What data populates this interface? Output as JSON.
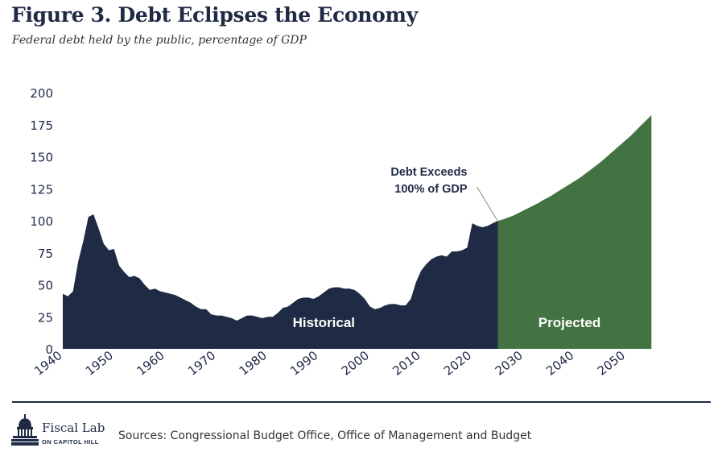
{
  "title": "Figure 3. Debt Eclipses the Economy",
  "subtitle": "Federal debt held by the public, percentage of GDP",
  "colors": {
    "historical": "#1f2a44",
    "projected": "#437342",
    "text": "#1f2a44",
    "annotation_line": "#888888"
  },
  "chart_data": {
    "type": "area",
    "title": "Figure 3. Debt Eclipses the Economy",
    "subtitle": "Federal debt held by the public, percentage of GDP",
    "xlabel": "",
    "ylabel": "",
    "xlim": [
      1940,
      2057
    ],
    "ylim": [
      0,
      200
    ],
    "y_ticks": [
      0,
      25,
      50,
      75,
      100,
      125,
      150,
      175,
      200
    ],
    "x_ticks": [
      1940,
      1950,
      1960,
      1970,
      1980,
      1990,
      2000,
      2010,
      2020,
      2030,
      2040,
      2050
    ],
    "grid": false,
    "legend": "none",
    "series": [
      {
        "name": "Historical",
        "x": [
          1940,
          1941,
          1942,
          1943,
          1944,
          1945,
          1946,
          1947,
          1948,
          1949,
          1950,
          1951,
          1952,
          1953,
          1954,
          1955,
          1956,
          1957,
          1958,
          1959,
          1960,
          1961,
          1962,
          1963,
          1964,
          1965,
          1966,
          1967,
          1968,
          1969,
          1970,
          1971,
          1972,
          1973,
          1974,
          1975,
          1976,
          1977,
          1978,
          1979,
          1980,
          1981,
          1982,
          1983,
          1984,
          1985,
          1986,
          1987,
          1988,
          1989,
          1990,
          1991,
          1992,
          1993,
          1994,
          1995,
          1996,
          1997,
          1998,
          1999,
          2000,
          2001,
          2002,
          2003,
          2004,
          2005,
          2006,
          2007,
          2008,
          2009,
          2010,
          2011,
          2012,
          2013,
          2014,
          2015,
          2016,
          2017,
          2018,
          2019,
          2020,
          2021,
          2022,
          2023,
          2024,
          2025
        ],
        "values": [
          43,
          41,
          45,
          68,
          84,
          103,
          105,
          94,
          82,
          77,
          78,
          65,
          60,
          56,
          57,
          55,
          50,
          46,
          47,
          45,
          44,
          43,
          42,
          40,
          38,
          36,
          33,
          31,
          31,
          27,
          26,
          26,
          25,
          24,
          22,
          24,
          26,
          26,
          25,
          24,
          25,
          25,
          28,
          32,
          33,
          36,
          39,
          40,
          40,
          39,
          41,
          44,
          47,
          48,
          48,
          47,
          47,
          46,
          43,
          39,
          33,
          31,
          32,
          34,
          35,
          35,
          34,
          34,
          39,
          52,
          61,
          66,
          70,
          72,
          73,
          72,
          76,
          76,
          77,
          79,
          98,
          96,
          95,
          96,
          98,
          100
        ]
      },
      {
        "name": "Projected",
        "x": [
          2025,
          2026,
          2027,
          2028,
          2029,
          2030,
          2031,
          2032,
          2033,
          2034,
          2035,
          2036,
          2037,
          2038,
          2039,
          2040,
          2041,
          2042,
          2043,
          2044,
          2045,
          2046,
          2047,
          2048,
          2049,
          2050,
          2051,
          2052,
          2053,
          2054,
          2055
        ],
        "values": [
          100,
          101,
          102.5,
          104,
          106,
          108,
          110,
          112,
          114,
          116.5,
          118.5,
          121,
          123.5,
          126,
          128.5,
          131,
          133.5,
          136.5,
          139.5,
          142.5,
          145.5,
          149,
          152.5,
          156,
          159.5,
          163,
          166.5,
          170.5,
          174.5,
          178.5,
          182.5
        ]
      }
    ],
    "annotations": [
      {
        "text": "Debt Exceeds",
        "text2": "100% of GDP",
        "x": 2025,
        "y": 100
      },
      {
        "text": "Historical",
        "x": 1991,
        "y": 17
      },
      {
        "text": "Projected",
        "x": 2039,
        "y": 17
      }
    ]
  },
  "footer": {
    "logo_name": "Fiscal Lab",
    "logo_sub": "ON CAPITOL HILL",
    "sources": "Sources: Congressional Budget Office, Office of Management and Budget"
  }
}
